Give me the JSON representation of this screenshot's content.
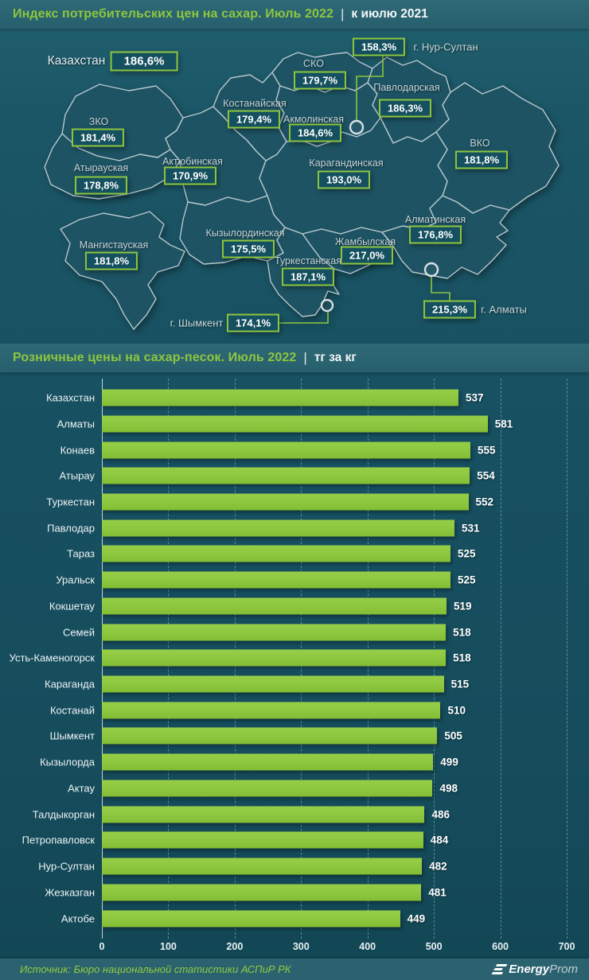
{
  "header1": {
    "title": "Индекс потребительских цен на сахар. Июль 2022",
    "separator": "|",
    "subtitle": "к июлю 2021"
  },
  "map": {
    "regions": [
      {
        "name": "Казахстан",
        "value": "186,6%"
      },
      {
        "name": "г. Нур-Султан",
        "value": "158,3%"
      },
      {
        "name": "СКО",
        "value": "179,7%"
      },
      {
        "name": "Павлодарская",
        "value": "186,3%"
      },
      {
        "name": "Костанайская",
        "value": "179,4%"
      },
      {
        "name": "Акмолинская",
        "value": "184,6%"
      },
      {
        "name": "ЗКО",
        "value": "181,4%"
      },
      {
        "name": "ВКО",
        "value": "181,8%"
      },
      {
        "name": "Атырауская",
        "value": "178,8%"
      },
      {
        "name": "Актюбинская",
        "value": "170,9%"
      },
      {
        "name": "Карагандинская",
        "value": "193,0%"
      },
      {
        "name": "Алматинская",
        "value": "176,8%"
      },
      {
        "name": "Мангистауская",
        "value": "181,8%"
      },
      {
        "name": "Кызылординская",
        "value": "175,5%"
      },
      {
        "name": "Жамбылская",
        "value": "217,0%"
      },
      {
        "name": "Туркестанская",
        "value": "187,1%"
      },
      {
        "name": "г. Шымкент",
        "value": "174,1%"
      },
      {
        "name": "г. Алматы",
        "value": "215,3%"
      }
    ]
  },
  "header2": {
    "title": "Розничные цены на сахар-песок. Июль 2022",
    "separator": "|",
    "subtitle": "тг за кг"
  },
  "chart_data": {
    "type": "bar",
    "orientation": "horizontal",
    "title": "Розничные цены на сахар-песок. Июль 2022, тг за кг",
    "categories": [
      "Казахстан",
      "Алматы",
      "Конаев",
      "Атырау",
      "Туркестан",
      "Павлодар",
      "Тараз",
      "Уральск",
      "Кокшетау",
      "Семей",
      "Усть-Каменогорск",
      "Караганда",
      "Костанай",
      "Шымкент",
      "Кызылорда",
      "Актау",
      "Талдыкорган",
      "Петропавловск",
      "Нур-Султан",
      "Жезказган",
      "Актобе"
    ],
    "values": [
      537,
      581,
      555,
      554,
      552,
      531,
      525,
      525,
      519,
      518,
      518,
      515,
      510,
      505,
      499,
      498,
      486,
      484,
      482,
      481,
      449
    ],
    "xlabel": "",
    "ylabel": "",
    "xlim": [
      0,
      700
    ],
    "x_ticks": [
      0,
      100,
      200,
      300,
      400,
      500,
      600,
      700
    ],
    "grid": true,
    "legend": false,
    "bar_color": "#8dc63f"
  },
  "footer": {
    "source": "Источник: Бюро национальной статистики АСПиР РК",
    "brand_bold": "Energy",
    "brand_light": "Prom"
  },
  "colors": {
    "accent_green": "#8dc63f",
    "background_teal": "#175061",
    "band_teal": "#2a6371",
    "region_fill": "#1d5363",
    "region_border": "#b7c7cd",
    "box_fill": "#14505f",
    "text_light": "#eef3f5"
  }
}
